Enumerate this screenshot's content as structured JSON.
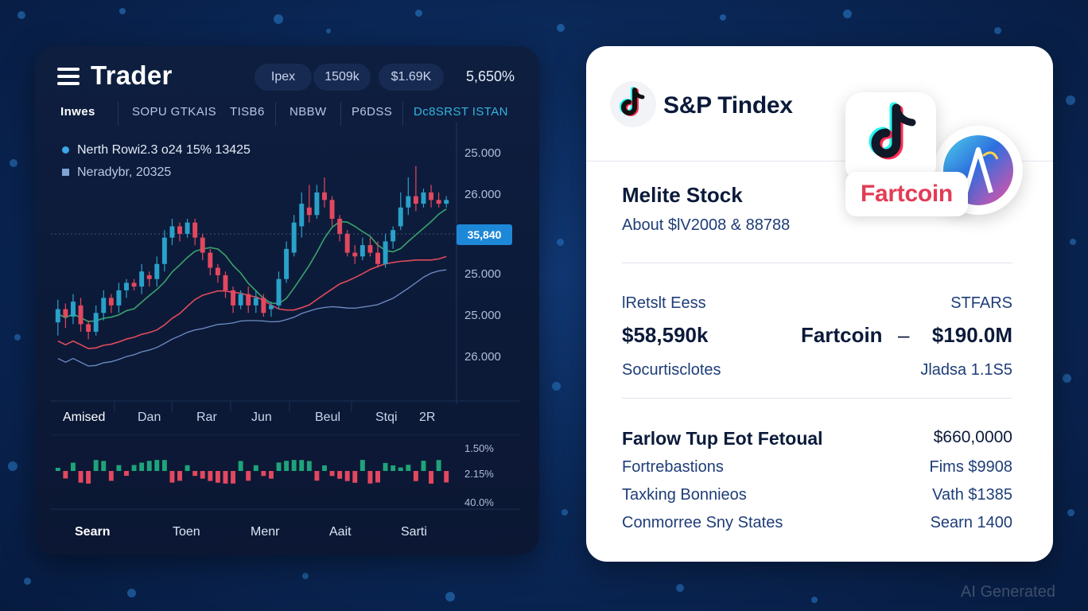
{
  "trader": {
    "title": "Trader",
    "pills": [
      "Ipex",
      "1509k",
      "$1.69K"
    ],
    "top_value": "5,650%",
    "tabs": [
      "Inwes",
      "SOPU GTKAIS",
      "TISB6",
      "NBBW",
      "P6DSS",
      "Dc8SRST ISTAN"
    ],
    "legend": [
      "Nerth Rowi2.3 o24 15% 13425",
      "Neradybr, 20325"
    ],
    "y_labels": [
      "25.000",
      "26.000",
      "25.000",
      "25.000",
      "26.000"
    ],
    "price_tag": "35,840",
    "x_labels": [
      "Amised",
      "Dan",
      "Rar",
      "Jun",
      "Beul",
      "Stqi",
      "2R"
    ],
    "vol_labels": [
      "1.50%",
      "2.15%",
      "40.0%"
    ],
    "bottom_labels": [
      "Searn",
      "Toen",
      "Menr",
      "Aait",
      "Sarti"
    ]
  },
  "colors": {
    "up": "#2aa1c9",
    "down": "#e2485f",
    "accent": "#1e88d8",
    "ma_green": "#3aa36d",
    "ma_red": "#e04a5a",
    "ma_blue": "#6f8fc7"
  },
  "chart_data": {
    "type": "candlestick",
    "ylim": [
      0,
      100
    ],
    "ohlc": [
      [
        35,
        42,
        28,
        47
      ],
      [
        42,
        38,
        32,
        45
      ],
      [
        38,
        46,
        34,
        50
      ],
      [
        44,
        34,
        30,
        48
      ],
      [
        34,
        30,
        26,
        36
      ],
      [
        30,
        40,
        28,
        44
      ],
      [
        40,
        48,
        36,
        52
      ],
      [
        48,
        44,
        40,
        50
      ],
      [
        44,
        52,
        40,
        56
      ],
      [
        52,
        56,
        48,
        58
      ],
      [
        56,
        54,
        52,
        58
      ],
      [
        54,
        62,
        50,
        66
      ],
      [
        60,
        58,
        54,
        62
      ],
      [
        58,
        66,
        54,
        70
      ],
      [
        66,
        80,
        62,
        84
      ],
      [
        80,
        86,
        76,
        90
      ],
      [
        86,
        82,
        78,
        88
      ],
      [
        82,
        88,
        80,
        90
      ],
      [
        88,
        80,
        76,
        90
      ],
      [
        80,
        72,
        68,
        82
      ],
      [
        72,
        64,
        60,
        74
      ],
      [
        64,
        60,
        56,
        66
      ],
      [
        60,
        52,
        48,
        62
      ],
      [
        52,
        44,
        40,
        54
      ],
      [
        44,
        50,
        42,
        52
      ],
      [
        50,
        44,
        40,
        54
      ],
      [
        44,
        48,
        40,
        52
      ],
      [
        48,
        40,
        38,
        50
      ],
      [
        42,
        44,
        38,
        46
      ],
      [
        44,
        58,
        42,
        62
      ],
      [
        58,
        74,
        56,
        78
      ],
      [
        72,
        88,
        70,
        92
      ],
      [
        86,
        98,
        80,
        104
      ],
      [
        96,
        92,
        88,
        108
      ],
      [
        92,
        104,
        90,
        108
      ],
      [
        104,
        100,
        96,
        112
      ],
      [
        100,
        90,
        86,
        102
      ],
      [
        90,
        82,
        78,
        92
      ],
      [
        82,
        72,
        70,
        84
      ],
      [
        72,
        70,
        66,
        76
      ],
      [
        70,
        76,
        68,
        80
      ],
      [
        76,
        72,
        70,
        80
      ],
      [
        72,
        66,
        64,
        78
      ],
      [
        66,
        78,
        64,
        82
      ],
      [
        78,
        84,
        74,
        86
      ],
      [
        86,
        96,
        84,
        104
      ],
      [
        96,
        102,
        92,
        112
      ],
      [
        102,
        98,
        94,
        118
      ],
      [
        98,
        104,
        96,
        106
      ],
      [
        104,
        100,
        96,
        108
      ],
      [
        100,
        98,
        96,
        104
      ],
      [
        98,
        100,
        96,
        102
      ]
    ],
    "volume": [
      1,
      -1,
      1,
      -1,
      -1,
      1,
      1,
      -1,
      1,
      -1,
      1,
      1,
      1,
      1,
      1,
      -1,
      -1,
      1,
      -1,
      -1,
      -1,
      -1,
      -1,
      -1,
      1,
      -1,
      1,
      -1,
      -1,
      1,
      1,
      1,
      1,
      1,
      -1,
      1,
      -1,
      -1,
      -1,
      -1,
      1,
      -1,
      -1,
      1,
      1,
      1,
      1,
      -1,
      1,
      -1,
      1,
      -1
    ]
  },
  "card": {
    "title": "S&P Tindex",
    "badge_label": "Fartcoin",
    "section_title": "Melite Stock",
    "section_sub": "About $lV2008 & 88788",
    "label_left": "lRetslt Eess",
    "label_right": "STFARS",
    "big_left": "$58,590k",
    "big_mid": "Fartcoin",
    "big_dash": "–",
    "big_right": "$190.0M",
    "sub_left": "Socurtisclotes",
    "sub_right": "Jladsa 1.1S5",
    "row_title": "Farlow Tup Eot Fetoual",
    "row_title_value": "$660,0000",
    "rows": [
      {
        "label": "Fortrebastions",
        "value": "Fims $9908"
      },
      {
        "label": "Taxking Bonnieos",
        "value": "Vath $1385"
      },
      {
        "label": "Conmorree Sny States",
        "value": "Searn 1400"
      }
    ]
  },
  "watermark": "AI Generated"
}
